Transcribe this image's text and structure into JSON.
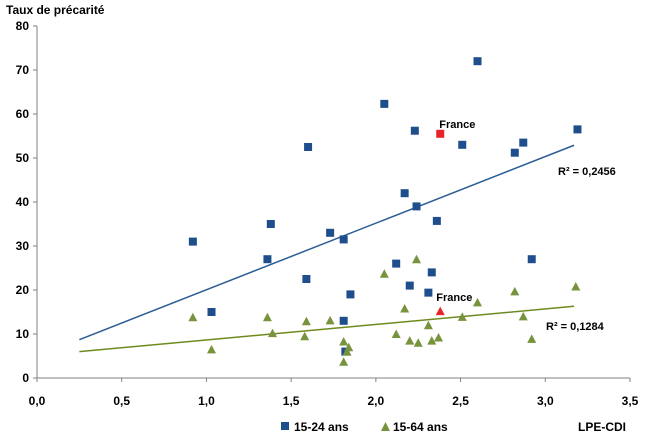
{
  "chart_data": {
    "type": "scatter",
    "ylabel": "Taux de précarité",
    "xlabel": "LPE-CDI",
    "xlim": [
      0,
      3.5
    ],
    "ylim": [
      0,
      80
    ],
    "x_ticks": [
      "0,0",
      "0,5",
      "1,0",
      "1,5",
      "2,0",
      "2,5",
      "3,0",
      "3,5"
    ],
    "x_tick_values": [
      0,
      0.5,
      1.0,
      1.5,
      2.0,
      2.5,
      3.0,
      3.5
    ],
    "y_ticks": [
      "0",
      "10",
      "20",
      "30",
      "40",
      "50",
      "60",
      "70",
      "80"
    ],
    "y_tick_values": [
      0,
      10,
      20,
      30,
      40,
      50,
      60,
      70,
      80
    ],
    "grid": false,
    "legend_position": "bottom",
    "series": [
      {
        "name": "15-24 ans",
        "marker": "square",
        "color": "#1F4E8C",
        "trend_color": "#2B5C96",
        "x": [
          0.92,
          1.03,
          1.36,
          1.38,
          1.59,
          1.6,
          1.73,
          1.81,
          1.81,
          1.82,
          1.85,
          2.05,
          2.12,
          2.17,
          2.2,
          2.23,
          2.24,
          2.31,
          2.33,
          2.36,
          2.51,
          2.6,
          2.82,
          2.87,
          2.92,
          3.19
        ],
        "y": [
          31,
          15,
          27,
          35,
          22.5,
          52.5,
          33,
          13,
          31.5,
          6,
          19,
          62.3,
          26,
          42,
          21,
          56.2,
          39,
          19.4,
          24,
          35.7,
          53,
          72,
          51.2,
          53.5,
          27,
          56.5
        ],
        "trendline": {
          "x": [
            0.25,
            3.17
          ],
          "y": [
            8.7,
            52.9
          ]
        },
        "r2_label": "R² = 0,2456"
      },
      {
        "name": "15-64 ans",
        "marker": "triangle",
        "color": "#77933C",
        "trend_color": "#6E8A1E",
        "x": [
          0.92,
          1.03,
          1.36,
          1.39,
          1.58,
          1.59,
          1.73,
          1.81,
          1.81,
          1.83,
          1.84,
          2.05,
          2.12,
          2.17,
          2.2,
          2.24,
          2.25,
          2.31,
          2.33,
          2.37,
          2.51,
          2.6,
          2.82,
          2.87,
          2.92,
          3.18
        ],
        "y": [
          13.8,
          6.5,
          13.8,
          10.2,
          9.5,
          12.9,
          13.1,
          3.7,
          8.3,
          6,
          7,
          23.7,
          10,
          15.8,
          8.5,
          27,
          8,
          12,
          8.5,
          9.2,
          13.9,
          17.2,
          19.7,
          14,
          8.9,
          20.8
        ],
        "trendline": {
          "x": [
            0.25,
            3.17
          ],
          "y": [
            6.0,
            16.3
          ]
        },
        "r2_label": "R² = 0,1284"
      }
    ],
    "highlights": [
      {
        "label": "France",
        "x": 2.38,
        "y": 55.5,
        "color": "#E8242A",
        "marker": "square"
      },
      {
        "label": "France",
        "x": 2.38,
        "y": 15.2,
        "color": "#E8242A",
        "marker": "triangle"
      }
    ]
  }
}
